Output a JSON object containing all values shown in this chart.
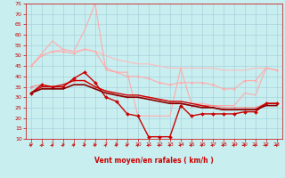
{
  "xlabel": "Vent moyen/en rafales ( km/h )",
  "background_color": "#c8eef0",
  "grid_color": "#a0ccd8",
  "xlim": [
    -0.5,
    23.5
  ],
  "ylim": [
    10,
    75
  ],
  "yticks": [
    10,
    15,
    20,
    25,
    30,
    35,
    40,
    45,
    50,
    55,
    60,
    65,
    70,
    75
  ],
  "xticks": [
    0,
    1,
    2,
    3,
    4,
    5,
    6,
    7,
    8,
    9,
    10,
    11,
    12,
    13,
    14,
    15,
    16,
    17,
    18,
    19,
    20,
    21,
    22,
    23
  ],
  "series": [
    {
      "x": [
        0,
        1,
        2,
        3,
        4,
        5,
        6,
        7,
        8,
        9,
        10,
        11,
        12,
        13,
        14,
        15,
        16,
        17,
        18,
        19,
        20,
        21,
        22,
        23
      ],
      "y": [
        45,
        50,
        52,
        53,
        52,
        53,
        52,
        50,
        48,
        47,
        46,
        46,
        45,
        44,
        44,
        44,
        44,
        44,
        43,
        43,
        43,
        44,
        44,
        43
      ],
      "color": "#ffbbbb",
      "lw": 0.8,
      "marker": null,
      "ms": 0
    },
    {
      "x": [
        0,
        1,
        2,
        3,
        4,
        5,
        6,
        7,
        8,
        9,
        10,
        11,
        12,
        13,
        14,
        15,
        16,
        17,
        18,
        19,
        20,
        21,
        22,
        23
      ],
      "y": [
        45,
        50,
        52,
        52,
        51,
        53,
        52,
        44,
        42,
        40,
        40,
        39,
        37,
        36,
        37,
        37,
        37,
        36,
        34,
        34,
        38,
        38,
        44,
        43
      ],
      "color": "#ffaaaa",
      "lw": 0.8,
      "marker": "o",
      "ms": 1.5
    },
    {
      "x": [
        0,
        1,
        2,
        3,
        4,
        5,
        6,
        7,
        8,
        9,
        10,
        11,
        12,
        13,
        14,
        15,
        16,
        17,
        18,
        19,
        20,
        21,
        22,
        23
      ],
      "y": [
        45,
        51,
        57,
        53,
        52,
        62,
        75,
        43,
        42,
        42,
        21,
        21,
        21,
        21,
        44,
        27,
        27,
        26,
        26,
        26,
        32,
        31,
        44,
        43
      ],
      "color": "#ffaaaa",
      "lw": 0.8,
      "marker": null,
      "ms": 0
    },
    {
      "x": [
        0,
        1,
        2,
        3,
        4,
        5,
        6,
        7,
        8,
        9,
        10,
        11,
        12,
        13,
        14,
        15,
        16,
        17,
        18,
        19,
        20,
        21,
        22,
        23
      ],
      "y": [
        35,
        36,
        35,
        35,
        38,
        38,
        35,
        33,
        31,
        30,
        30,
        30,
        29,
        28,
        27,
        26,
        26,
        26,
        25,
        25,
        25,
        25,
        27,
        27
      ],
      "color": "#ee8888",
      "lw": 0.8,
      "marker": "o",
      "ms": 1.5
    },
    {
      "x": [
        0,
        1,
        2,
        3,
        4,
        5,
        6,
        7,
        8,
        9,
        10,
        11,
        12,
        13,
        14,
        15,
        16,
        17,
        18,
        19,
        20,
        21,
        22,
        23
      ],
      "y": [
        32,
        36,
        35,
        35,
        39,
        42,
        37,
        30,
        28,
        22,
        21,
        11,
        11,
        11,
        26,
        21,
        22,
        22,
        22,
        22,
        23,
        23,
        27,
        27
      ],
      "color": "#cc0000",
      "lw": 1.0,
      "marker": "D",
      "ms": 2.0
    },
    {
      "x": [
        0,
        1,
        2,
        3,
        4,
        5,
        6,
        7,
        8,
        9,
        10,
        11,
        12,
        13,
        14,
        15,
        16,
        17,
        18,
        19,
        20,
        21,
        22,
        23
      ],
      "y": [
        32,
        35,
        35,
        36,
        38,
        38,
        35,
        33,
        32,
        31,
        31,
        30,
        29,
        28,
        28,
        27,
        26,
        25,
        24,
        24,
        24,
        24,
        27,
        27
      ],
      "color": "#cc0000",
      "lw": 1.0,
      "marker": null,
      "ms": 0
    },
    {
      "x": [
        0,
        1,
        2,
        3,
        4,
        5,
        6,
        7,
        8,
        9,
        10,
        11,
        12,
        13,
        14,
        15,
        16,
        17,
        18,
        19,
        20,
        21,
        22,
        23
      ],
      "y": [
        32,
        34,
        34,
        34,
        36,
        36,
        34,
        32,
        31,
        30,
        30,
        29,
        28,
        27,
        27,
        26,
        25,
        25,
        24,
        24,
        24,
        24,
        26,
        26
      ],
      "color": "#880000",
      "lw": 1.2,
      "marker": null,
      "ms": 0
    }
  ],
  "tick_fontsize": 4.5,
  "xlabel_fontsize": 5.5,
  "xlabel_color": "#cc0000",
  "tick_color": "#cc0000"
}
